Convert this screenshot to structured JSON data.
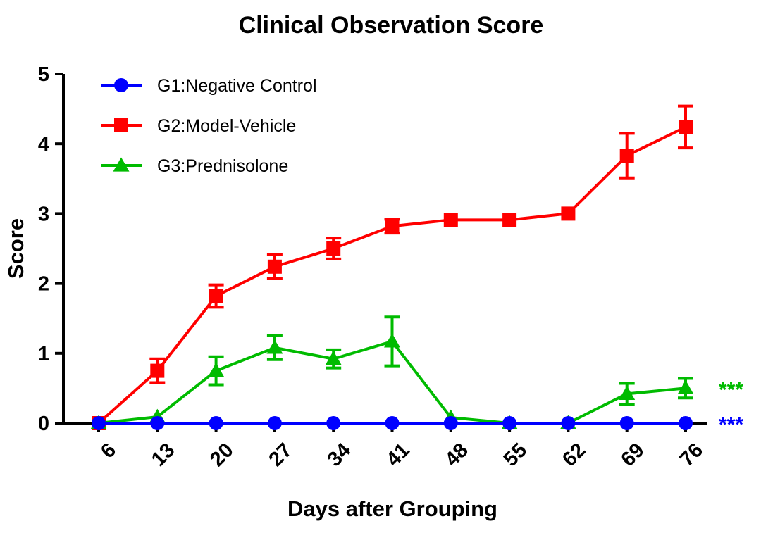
{
  "chart_data": {
    "type": "line",
    "title": "Clinical Observation Score",
    "xlabel": "Days after Grouping",
    "ylabel": "Score",
    "x": [
      6,
      13,
      20,
      27,
      34,
      41,
      48,
      55,
      62,
      69,
      76
    ],
    "x_tick_labels": [
      "6",
      "13",
      "20",
      "27",
      "34",
      "41",
      "48",
      "55",
      "62",
      "69",
      "76"
    ],
    "ylim": [
      0,
      5
    ],
    "y_ticks": [
      0,
      1,
      2,
      3,
      4,
      5
    ],
    "grid": false,
    "legend_position": "top-left",
    "series": [
      {
        "name": "G1:Negative Control",
        "color": "#0000ff",
        "marker": "circle",
        "values": [
          0,
          0,
          0,
          0,
          0,
          0,
          0,
          0,
          0,
          0,
          0
        ],
        "errors": [
          0,
          0,
          0,
          0,
          0,
          0,
          0,
          0,
          0,
          0,
          0
        ],
        "significance": "***"
      },
      {
        "name": "G2:Model-Vehicle",
        "color": "#ff0000",
        "marker": "square",
        "values": [
          0,
          0.75,
          1.82,
          2.24,
          2.5,
          2.82,
          2.91,
          2.91,
          3.0,
          3.83,
          4.24
        ],
        "errors": [
          0,
          0.17,
          0.16,
          0.17,
          0.15,
          0.1,
          0,
          0,
          0,
          0.32,
          0.3
        ]
      },
      {
        "name": "G3:Prednisolone",
        "color": "#00bb00",
        "marker": "triangle",
        "values": [
          0,
          0.09,
          0.75,
          1.08,
          0.92,
          1.17,
          0.08,
          0,
          0,
          0.42,
          0.5
        ],
        "errors": [
          0,
          0,
          0.2,
          0.17,
          0.13,
          0.35,
          0,
          0,
          0,
          0.15,
          0.14
        ],
        "significance": "***"
      }
    ]
  }
}
